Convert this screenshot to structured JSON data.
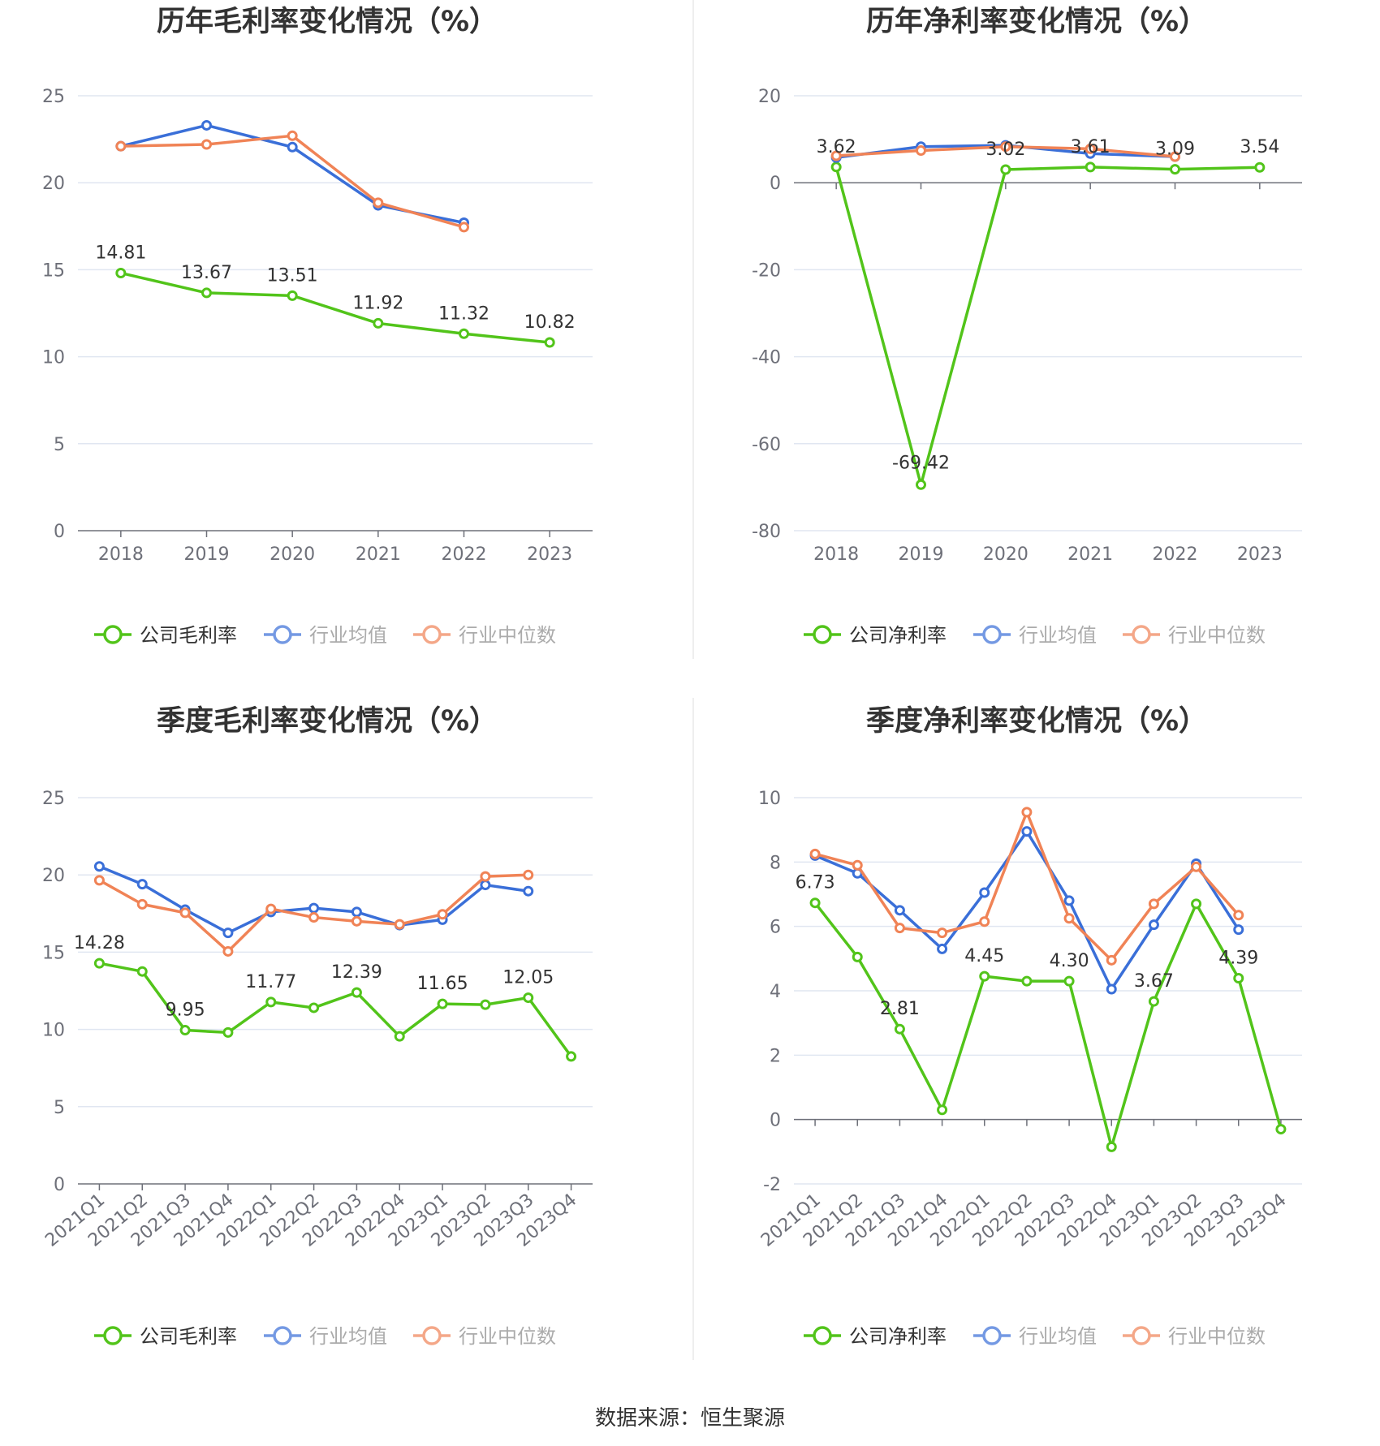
{
  "colors": {
    "company": "#52c41a",
    "industry_avg": "#3a6fd8",
    "industry_median": "#f08356",
    "grid": "#e0e6f1",
    "axis": "#6e7079"
  },
  "legends": {
    "gross": [
      "公司毛利率",
      "行业均值",
      "行业中位数"
    ],
    "net": [
      "公司净利率",
      "行业均值",
      "行业中位数"
    ]
  },
  "source_label": "数据来源：恒生聚源",
  "chart_data": [
    {
      "type": "line",
      "title": "历年毛利率变化情况（%）",
      "categories": [
        "2018",
        "2019",
        "2020",
        "2021",
        "2022",
        "2023"
      ],
      "ylim": [
        0,
        25
      ],
      "yticks": [
        0,
        5,
        10,
        15,
        20,
        25
      ],
      "grid": true,
      "legend": "bottom",
      "series": [
        {
          "name": "公司毛利率",
          "values": [
            14.81,
            13.67,
            13.51,
            11.92,
            11.32,
            10.82
          ],
          "labels": [
            "14.81",
            "13.67",
            "13.51",
            "11.92",
            "11.32",
            "10.82"
          ]
        },
        {
          "name": "行业均值",
          "values": [
            22.1,
            23.3,
            22.05,
            18.7,
            17.7,
            null
          ]
        },
        {
          "name": "行业中位数",
          "values": [
            22.1,
            22.2,
            22.7,
            18.85,
            17.45,
            null
          ]
        }
      ]
    },
    {
      "type": "line",
      "title": "历年净利率变化情况（%）",
      "categories": [
        "2018",
        "2019",
        "2020",
        "2021",
        "2022",
        "2023"
      ],
      "ylim": [
        -80,
        20
      ],
      "yticks": [
        -80,
        -60,
        -40,
        -20,
        0,
        20
      ],
      "grid": true,
      "legend": "bottom",
      "series": [
        {
          "name": "公司净利率",
          "values": [
            3.62,
            -69.42,
            3.02,
            3.61,
            3.09,
            3.54
          ],
          "labels": [
            "3.62",
            "-69.42",
            "3.02",
            "3.61",
            "3.09",
            "3.54"
          ]
        },
        {
          "name": "行业均值",
          "values": [
            5.8,
            8.3,
            8.6,
            6.7,
            6.0,
            null
          ]
        },
        {
          "name": "行业中位数",
          "values": [
            6.2,
            7.4,
            8.3,
            7.8,
            6.0,
            null
          ]
        }
      ]
    },
    {
      "type": "line",
      "title": "季度毛利率变化情况（%）",
      "categories": [
        "2021Q1",
        "2021Q2",
        "2021Q3",
        "2021Q4",
        "2022Q1",
        "2022Q2",
        "2022Q3",
        "2022Q4",
        "2023Q1",
        "2023Q2",
        "2023Q3",
        "2023Q4"
      ],
      "ylim": [
        0,
        25
      ],
      "yticks": [
        0,
        5,
        10,
        15,
        20,
        25
      ],
      "grid": true,
      "legend": "bottom",
      "series": [
        {
          "name": "公司毛利率",
          "values": [
            14.28,
            13.75,
            9.95,
            9.8,
            11.77,
            11.4,
            12.39,
            9.55,
            11.65,
            11.6,
            12.05,
            8.25
          ],
          "labels": [
            "14.28",
            null,
            "9.95",
            null,
            "11.77",
            null,
            "12.39",
            null,
            "11.65",
            null,
            "12.05",
            null
          ]
        },
        {
          "name": "行业均值",
          "values": [
            20.55,
            19.4,
            17.75,
            16.25,
            17.6,
            17.85,
            17.6,
            16.75,
            17.1,
            19.35,
            18.95,
            null
          ]
        },
        {
          "name": "行业中位数",
          "values": [
            19.65,
            18.1,
            17.55,
            15.05,
            17.8,
            17.25,
            17.0,
            16.8,
            17.45,
            19.9,
            20.0,
            null
          ]
        }
      ]
    },
    {
      "type": "line",
      "title": "季度净利率变化情况（%）",
      "categories": [
        "2021Q1",
        "2021Q2",
        "2021Q3",
        "2021Q4",
        "2022Q1",
        "2022Q2",
        "2022Q3",
        "2022Q4",
        "2023Q1",
        "2023Q2",
        "2023Q3",
        "2023Q4"
      ],
      "ylim": [
        -2,
        10
      ],
      "yticks": [
        -2,
        0,
        2,
        4,
        6,
        8,
        10
      ],
      "grid": true,
      "legend": "bottom",
      "series": [
        {
          "name": "公司净利率",
          "values": [
            6.73,
            5.05,
            2.81,
            0.3,
            4.45,
            4.3,
            4.3,
            -0.85,
            3.67,
            6.7,
            4.39,
            -0.3
          ],
          "labels": [
            "6.73",
            null,
            "2.81",
            null,
            "4.45",
            null,
            "4.30",
            null,
            "3.67",
            null,
            "4.39",
            null
          ]
        },
        {
          "name": "行业均值",
          "values": [
            8.2,
            7.65,
            6.5,
            5.3,
            7.05,
            8.95,
            6.8,
            4.05,
            6.05,
            7.95,
            5.9,
            null
          ]
        },
        {
          "name": "行业中位数",
          "values": [
            8.25,
            7.9,
            5.95,
            5.8,
            6.15,
            9.55,
            6.25,
            4.95,
            6.7,
            7.85,
            6.35,
            null
          ]
        }
      ]
    }
  ]
}
